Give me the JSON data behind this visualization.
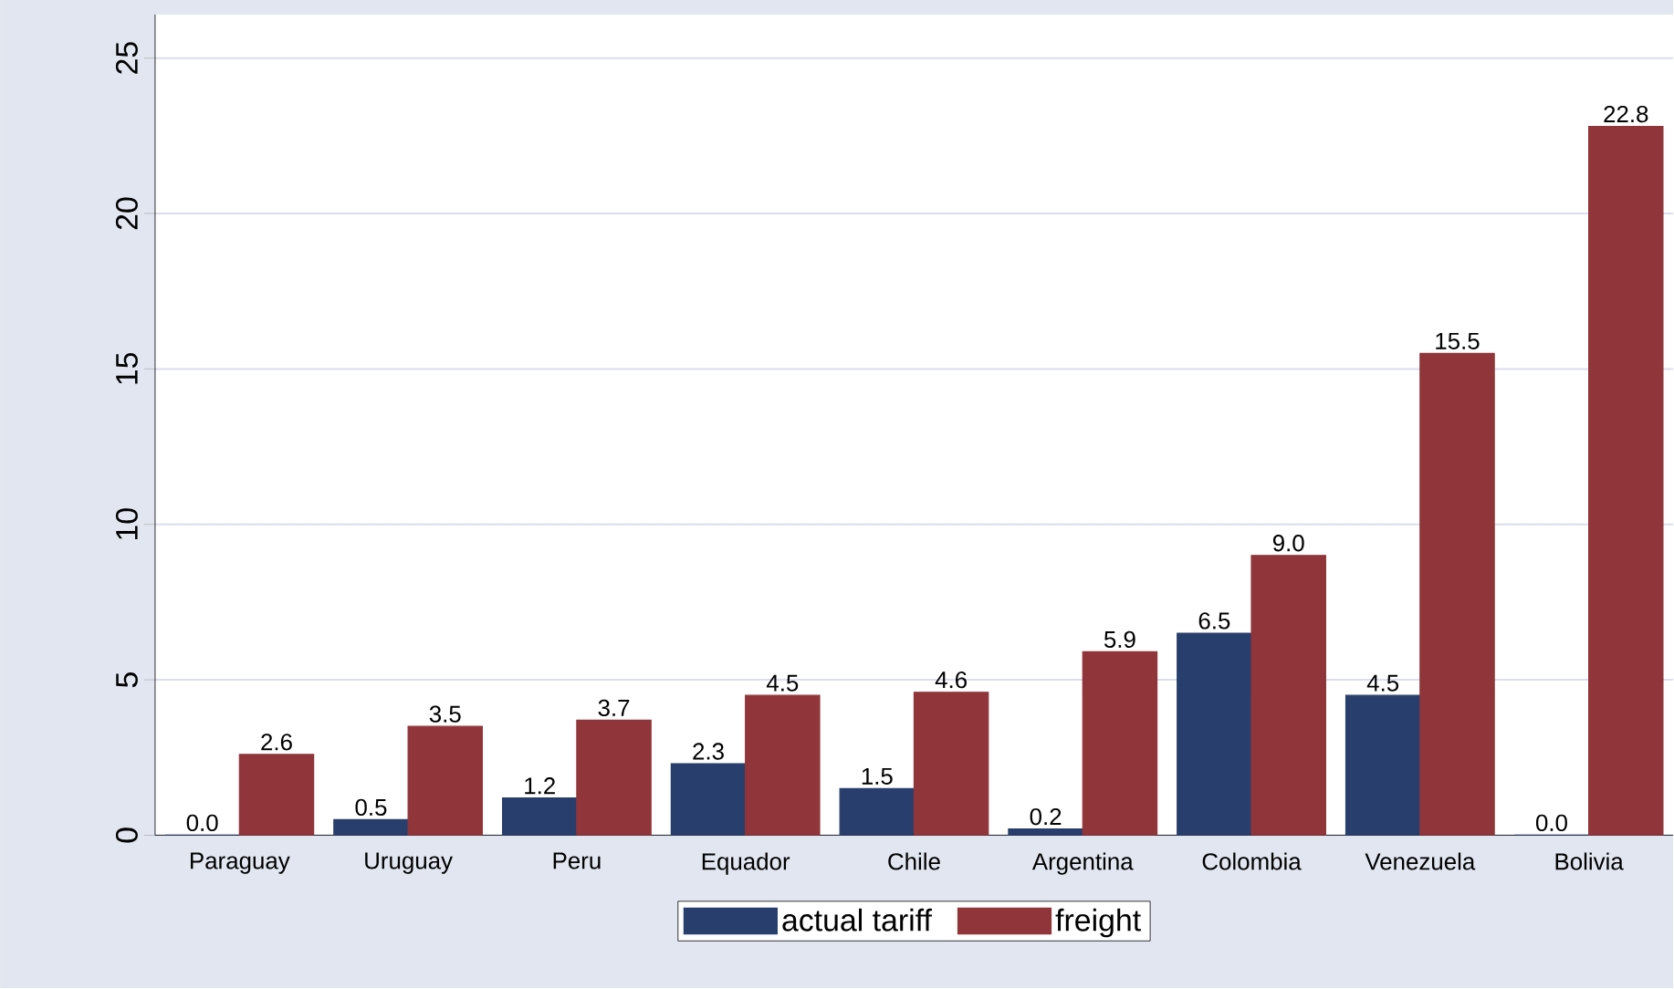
{
  "chart_data": {
    "type": "bar",
    "categories": [
      "Paraguay",
      "Uruguay",
      "Peru",
      "Equador",
      "Chile",
      "Argentina",
      "Colombia",
      "Venezuela",
      "Bolivia"
    ],
    "series": [
      {
        "name": "actual tariff",
        "color": "#283e6c",
        "values": [
          0.0,
          0.5,
          1.2,
          2.3,
          1.5,
          0.2,
          6.5,
          4.5,
          0.0
        ],
        "value_labels": [
          "0.0",
          "0.5",
          "1.2",
          "2.3",
          "1.5",
          "0.2",
          "6.5",
          "4.5",
          "0.0"
        ]
      },
      {
        "name": "freight",
        "color": "#903539",
        "values": [
          2.6,
          3.5,
          3.7,
          4.5,
          4.6,
          5.9,
          9.0,
          15.5,
          22.8
        ],
        "value_labels": [
          "2.6",
          "3.5",
          "3.7",
          "4.5",
          "4.6",
          "5.9",
          "9.0",
          "15.5",
          "22.8"
        ]
      }
    ],
    "ylim": [
      0,
      26.4
    ],
    "yticks": [
      0,
      5,
      10,
      15,
      20,
      25
    ],
    "grid": "y",
    "legend": "bottom"
  }
}
